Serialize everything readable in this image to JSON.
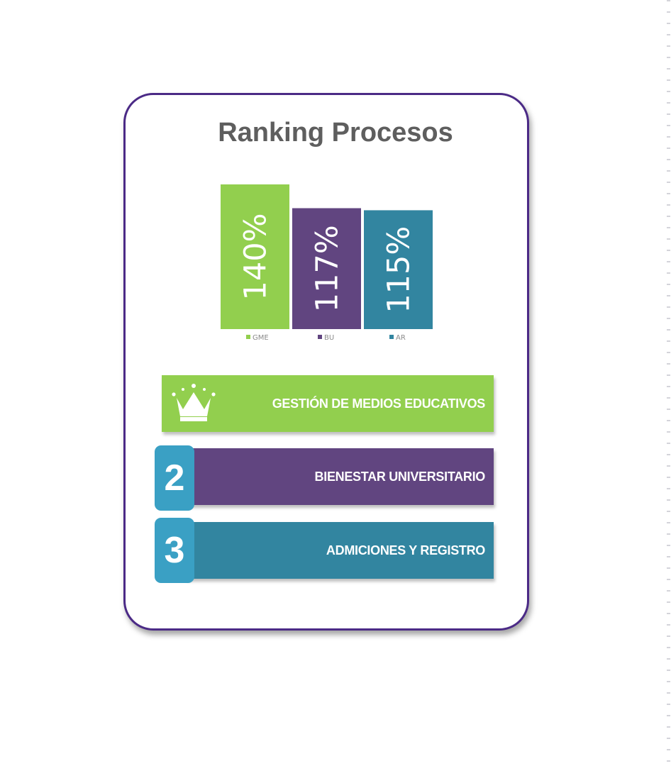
{
  "title": "Ranking Procesos",
  "colors": {
    "green": "#92cf4e",
    "purple": "#614580",
    "teal": "#3285a0",
    "badge": "#3aa0c4",
    "border": "#4b2a86"
  },
  "chart_data": {
    "type": "bar",
    "categories": [
      "GME",
      "BU",
      "AR"
    ],
    "values": [
      140,
      117,
      115
    ],
    "value_labels": [
      "140%",
      "117%",
      "115%"
    ],
    "colors": [
      "#92cf4e",
      "#614580",
      "#3285a0"
    ],
    "ylim": [
      0,
      140
    ],
    "legend": "bottom",
    "grid": false
  },
  "ranking": [
    {
      "rank": "1",
      "icon": "crown-icon",
      "label": "GESTIÓN DE MEDIOS EDUCATIVOS"
    },
    {
      "rank": "2",
      "label": "BIENESTAR UNIVERSITARIO"
    },
    {
      "rank": "3",
      "label": "ADMICIONES Y REGISTRO"
    }
  ]
}
